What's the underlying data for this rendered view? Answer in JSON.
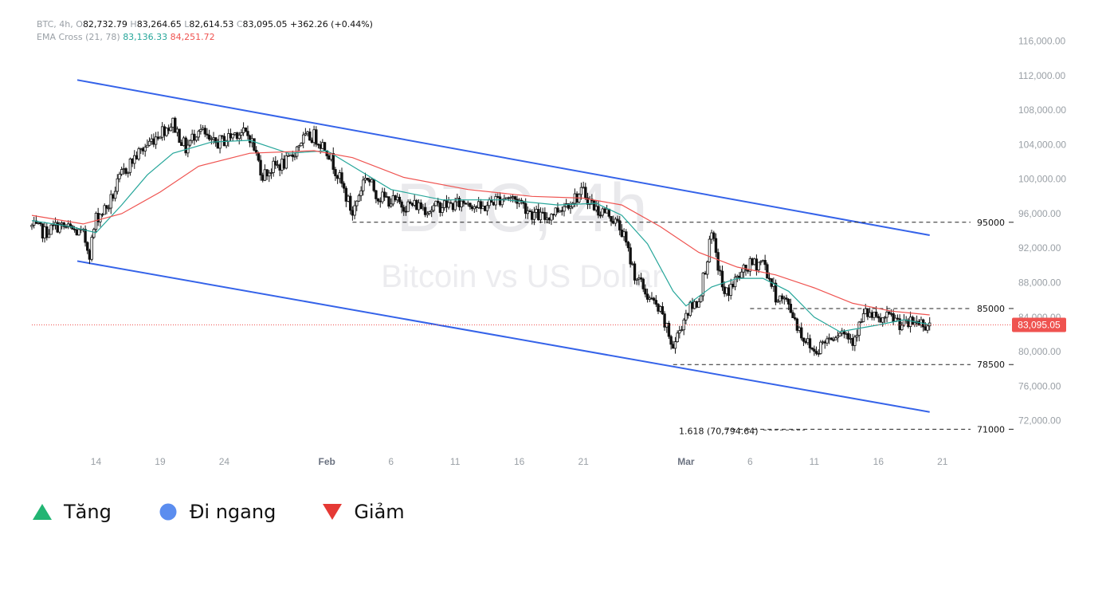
{
  "header": {
    "symbol": "BTC, 4h,",
    "o_label": "O",
    "o_value": "82,732.79",
    "h_label": "H",
    "h_value": "83,264.65",
    "l_label": "L",
    "l_value": "82,614.53",
    "c_label": "C",
    "c_value": "83,095.05",
    "change": "+362.26 (+0.44%)",
    "ema_label": "EMA Cross (21, 78)",
    "ema21_value": "83,136.33",
    "ema78_value": "84,251.72"
  },
  "watermark": {
    "line1": "BTC, 4h",
    "line2": "Bitcoin vs US Dollar"
  },
  "colors": {
    "channel": "#3563e9",
    "ema21": "#26a69a",
    "ema78": "#ef5350",
    "candle": "#111111",
    "price_tag": "#ef5350"
  },
  "legend": [
    {
      "label": "Tăng",
      "icon": "triangle-up-icon",
      "color": "#22b573"
    },
    {
      "label": "Đi ngang",
      "icon": "circle-icon",
      "color": "#5b8def"
    },
    {
      "label": "Giảm",
      "icon": "triangle-down-icon",
      "color": "#e53935"
    }
  ],
  "chart_data": {
    "type": "candlestick",
    "title": "",
    "x_ticks": [
      {
        "date": "2025-01-14",
        "label": "14",
        "bold": false
      },
      {
        "date": "2025-01-19",
        "label": "19",
        "bold": false
      },
      {
        "date": "2025-01-24",
        "label": "24",
        "bold": false
      },
      {
        "date": "2025-02-01",
        "label": "Feb",
        "bold": true
      },
      {
        "date": "2025-02-06",
        "label": "6",
        "bold": false
      },
      {
        "date": "2025-02-11",
        "label": "11",
        "bold": false
      },
      {
        "date": "2025-02-16",
        "label": "16",
        "bold": false
      },
      {
        "date": "2025-02-21",
        "label": "21",
        "bold": false
      },
      {
        "date": "2025-03-01",
        "label": "Mar",
        "bold": true
      },
      {
        "date": "2025-03-06",
        "label": "6",
        "bold": false
      },
      {
        "date": "2025-03-11",
        "label": "11",
        "bold": false
      },
      {
        "date": "2025-03-16",
        "label": "16",
        "bold": false
      },
      {
        "date": "2025-03-21",
        "label": "21",
        "bold": false
      }
    ],
    "x_range": [
      "2025-01-09",
      "2025-03-23"
    ],
    "y_ticks": [
      72000,
      76000,
      80000,
      84000,
      88000,
      92000,
      96000,
      100000,
      104000,
      108000,
      112000,
      116000
    ],
    "y_tick_labels": [
      "72,000.00",
      "76,000.00",
      "80,000.00",
      "84,000.00",
      "88,000.00",
      "92,000.00",
      "96,000.00",
      "100,000.00",
      "104,000.00",
      "108,000.00",
      "112,000.00",
      "116,000.00"
    ],
    "ylim": [
      69000,
      118000
    ],
    "current_price": 83095.05,
    "current_price_label": "83,095.05",
    "series": [
      {
        "name": "BTC",
        "kind": "close",
        "points": [
          [
            "2025-01-09",
            94500
          ],
          [
            "2025-01-10",
            93800
          ],
          [
            "2025-01-11",
            94600
          ],
          [
            "2025-01-12",
            94200
          ],
          [
            "2025-01-13",
            93500
          ],
          [
            "2025-01-13T12",
            91500
          ],
          [
            "2025-01-14",
            95500
          ],
          [
            "2025-01-15",
            97000
          ],
          [
            "2025-01-16",
            100500
          ],
          [
            "2025-01-17",
            102500
          ],
          [
            "2025-01-18",
            104000
          ],
          [
            "2025-01-19",
            105500
          ],
          [
            "2025-01-20",
            106500
          ],
          [
            "2025-01-21",
            103500
          ],
          [
            "2025-01-22",
            106000
          ],
          [
            "2025-01-23",
            104000
          ],
          [
            "2025-01-24",
            104500
          ],
          [
            "2025-01-25",
            105500
          ],
          [
            "2025-01-26",
            105000
          ],
          [
            "2025-01-27",
            100500
          ],
          [
            "2025-01-28",
            101500
          ],
          [
            "2025-01-29",
            102000
          ],
          [
            "2025-01-30",
            104500
          ],
          [
            "2025-01-31",
            105000
          ],
          [
            "2025-02-01",
            103500
          ],
          [
            "2025-02-02",
            100000
          ],
          [
            "2025-02-03",
            96000
          ],
          [
            "2025-02-04",
            100500
          ],
          [
            "2025-02-05",
            98000
          ],
          [
            "2025-02-06",
            97500
          ],
          [
            "2025-02-07",
            97000
          ],
          [
            "2025-02-08",
            97000
          ],
          [
            "2025-02-09",
            96500
          ],
          [
            "2025-02-10",
            97000
          ],
          [
            "2025-02-11",
            97000
          ],
          [
            "2025-02-12",
            97500
          ],
          [
            "2025-02-13",
            96500
          ],
          [
            "2025-02-14",
            97500
          ],
          [
            "2025-02-15",
            98000
          ],
          [
            "2025-02-16",
            97500
          ],
          [
            "2025-02-17",
            96000
          ],
          [
            "2025-02-18",
            95500
          ],
          [
            "2025-02-19",
            96500
          ],
          [
            "2025-02-20",
            97500
          ],
          [
            "2025-02-21",
            98500
          ],
          [
            "2025-02-22",
            96500
          ],
          [
            "2025-02-23",
            96000
          ],
          [
            "2025-02-24",
            94000
          ],
          [
            "2025-02-25",
            89000
          ],
          [
            "2025-02-26",
            86500
          ],
          [
            "2025-02-27",
            84500
          ],
          [
            "2025-02-28",
            80500
          ],
          [
            "2025-03-01",
            84500
          ],
          [
            "2025-03-02",
            86000
          ],
          [
            "2025-03-03",
            93500
          ],
          [
            "2025-03-04",
            86500
          ],
          [
            "2025-03-05",
            88500
          ],
          [
            "2025-03-06",
            90000
          ],
          [
            "2025-03-07",
            90500
          ],
          [
            "2025-03-08",
            86500
          ],
          [
            "2025-03-09",
            85500
          ],
          [
            "2025-03-10",
            82000
          ],
          [
            "2025-03-11",
            80000
          ],
          [
            "2025-03-12",
            81500
          ],
          [
            "2025-03-13",
            82500
          ],
          [
            "2025-03-14",
            81500
          ],
          [
            "2025-03-15",
            84500
          ],
          [
            "2025-03-16",
            83500
          ],
          [
            "2025-03-17",
            84000
          ],
          [
            "2025-03-18",
            83000
          ],
          [
            "2025-03-19",
            83500
          ],
          [
            "2025-03-20",
            83095
          ]
        ]
      },
      {
        "name": "EMA 21",
        "kind": "ema",
        "points": [
          [
            "2025-01-09",
            95200
          ],
          [
            "2025-01-12",
            94500
          ],
          [
            "2025-01-14",
            93800
          ],
          [
            "2025-01-16",
            97000
          ],
          [
            "2025-01-18",
            100500
          ],
          [
            "2025-01-20",
            103000
          ],
          [
            "2025-01-23",
            104300
          ],
          [
            "2025-01-26",
            104500
          ],
          [
            "2025-01-29",
            103000
          ],
          [
            "2025-02-01",
            103300
          ],
          [
            "2025-02-03",
            101500
          ],
          [
            "2025-02-06",
            98800
          ],
          [
            "2025-02-10",
            97600
          ],
          [
            "2025-02-15",
            97600
          ],
          [
            "2025-02-19",
            97000
          ],
          [
            "2025-02-22",
            97200
          ],
          [
            "2025-02-24",
            95800
          ],
          [
            "2025-02-26",
            92500
          ],
          [
            "2025-02-28",
            87000
          ],
          [
            "2025-03-01",
            85300
          ],
          [
            "2025-03-03",
            87500
          ],
          [
            "2025-03-05",
            88500
          ],
          [
            "2025-03-07",
            88500
          ],
          [
            "2025-03-09",
            87000
          ],
          [
            "2025-03-11",
            84000
          ],
          [
            "2025-03-13",
            82300
          ],
          [
            "2025-03-16",
            83100
          ],
          [
            "2025-03-18",
            83700
          ],
          [
            "2025-03-20",
            83136
          ]
        ]
      },
      {
        "name": "EMA 78",
        "kind": "ema",
        "points": [
          [
            "2025-01-09",
            95800
          ],
          [
            "2025-01-13",
            94800
          ],
          [
            "2025-01-16",
            96000
          ],
          [
            "2025-01-19",
            98500
          ],
          [
            "2025-01-22",
            101500
          ],
          [
            "2025-01-26",
            103000
          ],
          [
            "2025-01-31",
            103300
          ],
          [
            "2025-02-03",
            102500
          ],
          [
            "2025-02-07",
            100200
          ],
          [
            "2025-02-12",
            98800
          ],
          [
            "2025-02-17",
            98000
          ],
          [
            "2025-02-21",
            97800
          ],
          [
            "2025-02-24",
            97000
          ],
          [
            "2025-02-27",
            94500
          ],
          [
            "2025-03-02",
            91500
          ],
          [
            "2025-03-05",
            89800
          ],
          [
            "2025-03-08",
            88900
          ],
          [
            "2025-03-11",
            87400
          ],
          [
            "2025-03-14",
            85600
          ],
          [
            "2025-03-17",
            84700
          ],
          [
            "2025-03-20",
            84252
          ]
        ]
      }
    ],
    "channel": {
      "upper": [
        [
          "2025-01-09",
          111500
        ],
        [
          "2025-03-20",
          93500
        ]
      ],
      "lower": [
        [
          "2025-01-09",
          90500
        ],
        [
          "2025-03-20",
          73000
        ]
      ]
    },
    "levels": [
      {
        "label": "95000",
        "value": 95000,
        "from": "2025-02-03"
      },
      {
        "label": "85000",
        "value": 85000,
        "from": "2025-03-06"
      },
      {
        "label": "78500",
        "value": 78500,
        "from": "2025-02-28"
      },
      {
        "label": "71000",
        "value": 71000,
        "from": "2025-03-04"
      }
    ],
    "fib_label": "1.618 (70,794.64)"
  }
}
